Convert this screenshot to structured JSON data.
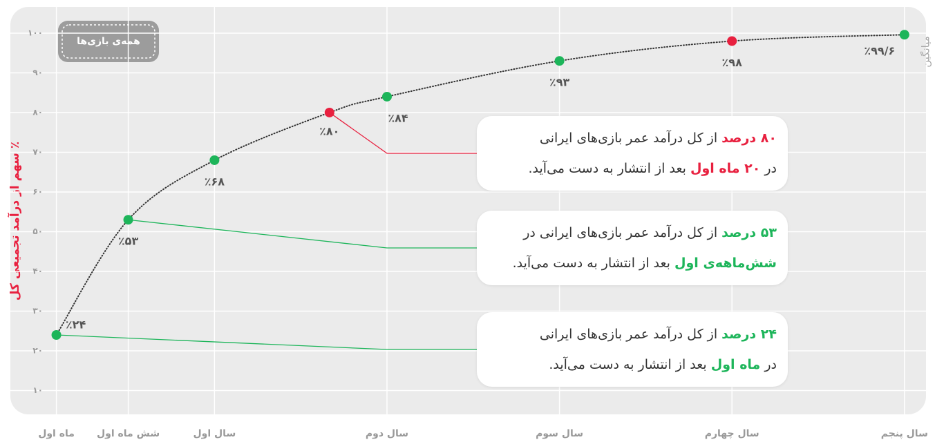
{
  "chart_data": {
    "type": "line",
    "y_label": "٪ سهم از درآمد تجمیعی کل",
    "side_label": "میانگین",
    "badge": "همه‌ی بازی‌ها",
    "x": [
      1,
      6,
      12,
      20,
      24,
      36,
      48,
      60
    ],
    "values": [
      24,
      53,
      68,
      80,
      84,
      93,
      98,
      99.6
    ],
    "value_labels": [
      "٪۲۴",
      "٪۵۳",
      "٪۶۸",
      "٪۸۰",
      "٪۸۴",
      "٪۹۳",
      "٪۹۸",
      "٪۹۹/۶"
    ],
    "point_colors": [
      "#1db55a",
      "#1db55a",
      "#1db55a",
      "#e8203f",
      "#1db55a",
      "#1db55a",
      "#e8203f",
      "#1db55a"
    ],
    "line_color": "#333333",
    "xlim": [
      -2.2,
      61.5
    ],
    "ylim": [
      4,
      106.6
    ],
    "xticks": [
      {
        "value": 1,
        "label": "ماه اول"
      },
      {
        "value": 6,
        "label": "شش ماه اول"
      },
      {
        "value": 12,
        "label": "سال اول"
      },
      {
        "value": 24,
        "label": "سال دوم"
      },
      {
        "value": 36,
        "label": "سال سوم"
      },
      {
        "value": 48,
        "label": "سال چهارم"
      },
      {
        "value": 60,
        "label": "سال پنجم"
      }
    ],
    "yticks": [
      {
        "value": 10,
        "label": "۱۰"
      },
      {
        "value": 20,
        "label": "۲۰"
      },
      {
        "value": 30,
        "label": "۳۰"
      },
      {
        "value": 40,
        "label": "۴۰"
      },
      {
        "value": 50,
        "label": "۵۰"
      },
      {
        "value": 60,
        "label": "۶۰"
      },
      {
        "value": 70,
        "label": "۷۰"
      },
      {
        "value": 80,
        "label": "۸۰"
      },
      {
        "value": 90,
        "label": "۹۰"
      },
      {
        "value": 100,
        "label": "۱۰۰"
      }
    ],
    "grid": true,
    "annotations": [
      {
        "color": "#e8203f",
        "lines": [
          [
            {
              "text": "۸۰ درصد",
              "bold": true
            },
            {
              "text": " از کل درآمد عمر بازی‌های ایرانی"
            }
          ],
          [
            {
              "text": "در "
            },
            {
              "text": "۲۰ ماه اول",
              "bold": true
            },
            {
              "text": " بعد از انتشار به دست می‌آید."
            }
          ]
        ]
      },
      {
        "color": "#1db55a",
        "lines": [
          [
            {
              "text": "۵۳ درصد",
              "bold": true
            },
            {
              "text": " از کل درآمد عمر بازی‌های ایرانی در"
            }
          ],
          [
            {
              "text": "شش‌ماهه‌ی اول",
              "bold": true
            },
            {
              "text": " بعد از انتشار به دست می‌آید."
            }
          ]
        ]
      },
      {
        "color": "#1db55a",
        "lines": [
          [
            {
              "text": "۲۴ درصد",
              "bold": true
            },
            {
              "text": " از کل درآمد عمر بازی‌های ایرانی"
            }
          ],
          [
            {
              "text": "در "
            },
            {
              "text": "ماه اول",
              "bold": true
            },
            {
              "text": " بعد از انتشار به دست می‌آید."
            }
          ]
        ]
      }
    ]
  }
}
